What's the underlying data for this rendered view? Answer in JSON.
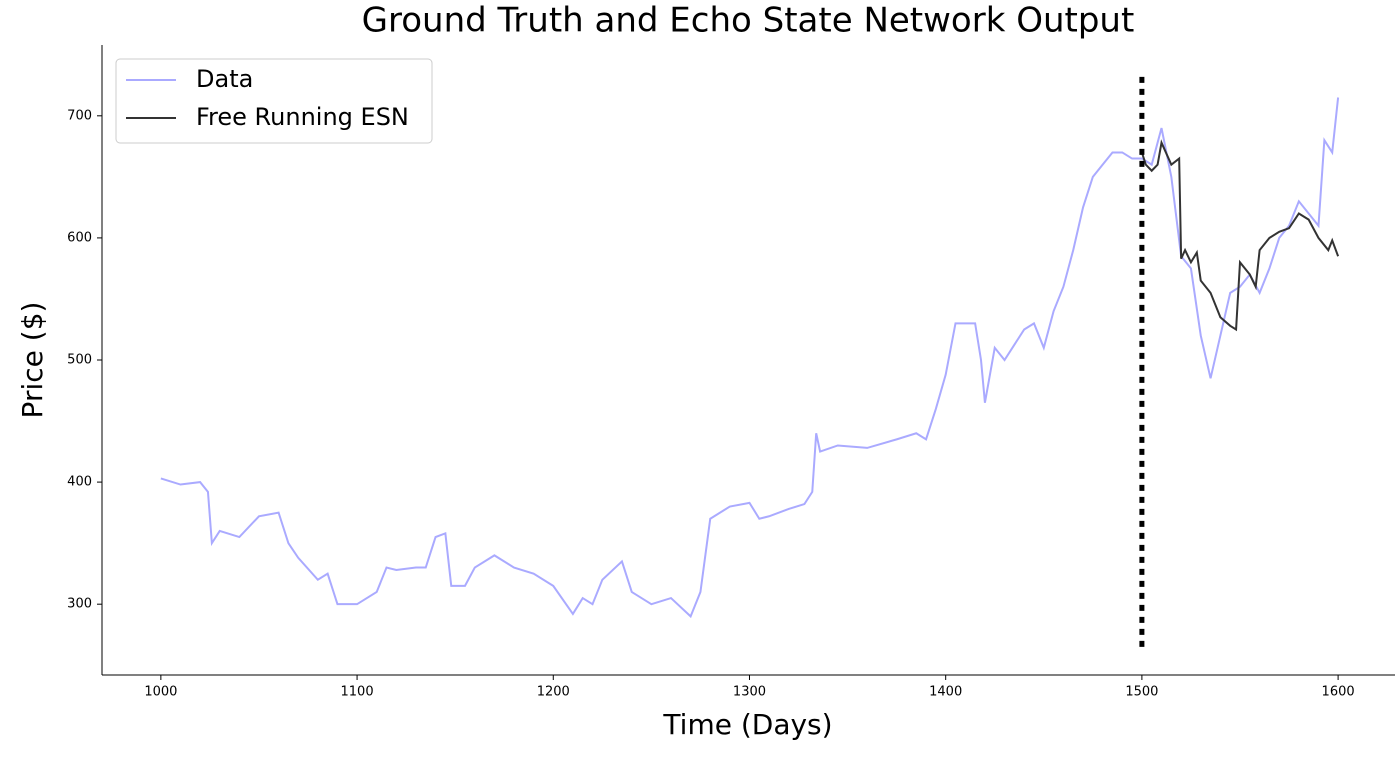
{
  "chart_data": {
    "type": "line",
    "title": "Ground Truth and Echo State Network Output",
    "x_label": "Time (Days)",
    "y_label": "Price ($)",
    "xlim": [
      970,
      1629
    ],
    "ylim": [
      242,
      758
    ],
    "xticks": [
      1000,
      1100,
      1200,
      1300,
      1400,
      1500,
      1600
    ],
    "yticks": [
      300,
      400,
      500,
      600,
      700
    ],
    "legend": "upper left",
    "vline": {
      "x": 1500,
      "ymin": 265,
      "ymax": 735
    },
    "series": [
      {
        "name": "Data",
        "color": "#aaaaff",
        "x": [
          1000,
          1010,
          1020,
          1024,
          1026,
          1030,
          1040,
          1050,
          1060,
          1065,
          1070,
          1080,
          1085,
          1090,
          1100,
          1110,
          1115,
          1120,
          1130,
          1135,
          1140,
          1145,
          1148,
          1155,
          1160,
          1170,
          1180,
          1190,
          1200,
          1210,
          1215,
          1220,
          1225,
          1235,
          1240,
          1250,
          1260,
          1270,
          1275,
          1280,
          1290,
          1300,
          1305,
          1310,
          1320,
          1328,
          1332,
          1334,
          1336,
          1345,
          1360,
          1375,
          1385,
          1390,
          1395,
          1400,
          1405,
          1415,
          1418,
          1420,
          1425,
          1430,
          1440,
          1445,
          1450,
          1455,
          1460,
          1465,
          1470,
          1475,
          1480,
          1485,
          1490,
          1495,
          1500,
          1505,
          1510,
          1515,
          1520,
          1525,
          1530,
          1535,
          1540,
          1545,
          1550,
          1555,
          1560,
          1565,
          1570,
          1575,
          1580,
          1585,
          1590,
          1593,
          1597,
          1600
        ],
        "values": [
          403,
          398,
          400,
          392,
          350,
          360,
          355,
          372,
          375,
          350,
          338,
          320,
          325,
          300,
          300,
          310,
          330,
          328,
          330,
          330,
          355,
          358,
          315,
          315,
          330,
          340,
          330,
          325,
          315,
          292,
          305,
          300,
          320,
          335,
          310,
          300,
          305,
          290,
          310,
          370,
          380,
          383,
          370,
          372,
          378,
          382,
          392,
          440,
          425,
          430,
          428,
          435,
          440,
          435,
          460,
          488,
          530,
          530,
          500,
          465,
          510,
          500,
          525,
          530,
          510,
          540,
          560,
          590,
          625,
          650,
          660,
          670,
          670,
          665,
          665,
          660,
          690,
          650,
          585,
          575,
          520,
          485,
          520,
          555,
          560,
          570,
          555,
          575,
          600,
          610,
          630,
          620,
          610,
          680,
          670,
          715
        ]
      },
      {
        "name": "Free Running ESN",
        "color": "#333333",
        "x": [
          1500,
          1502,
          1505,
          1508,
          1510,
          1515,
          1519,
          1520,
          1522,
          1525,
          1528,
          1530,
          1535,
          1540,
          1545,
          1548,
          1550,
          1555,
          1558,
          1560,
          1565,
          1570,
          1575,
          1580,
          1585,
          1590,
          1595,
          1597,
          1600
        ],
        "values": [
          670,
          660,
          655,
          660,
          678,
          660,
          665,
          583,
          590,
          580,
          588,
          565,
          555,
          535,
          528,
          525,
          580,
          570,
          560,
          590,
          600,
          605,
          608,
          620,
          615,
          600,
          590,
          598,
          585
        ]
      }
    ]
  }
}
